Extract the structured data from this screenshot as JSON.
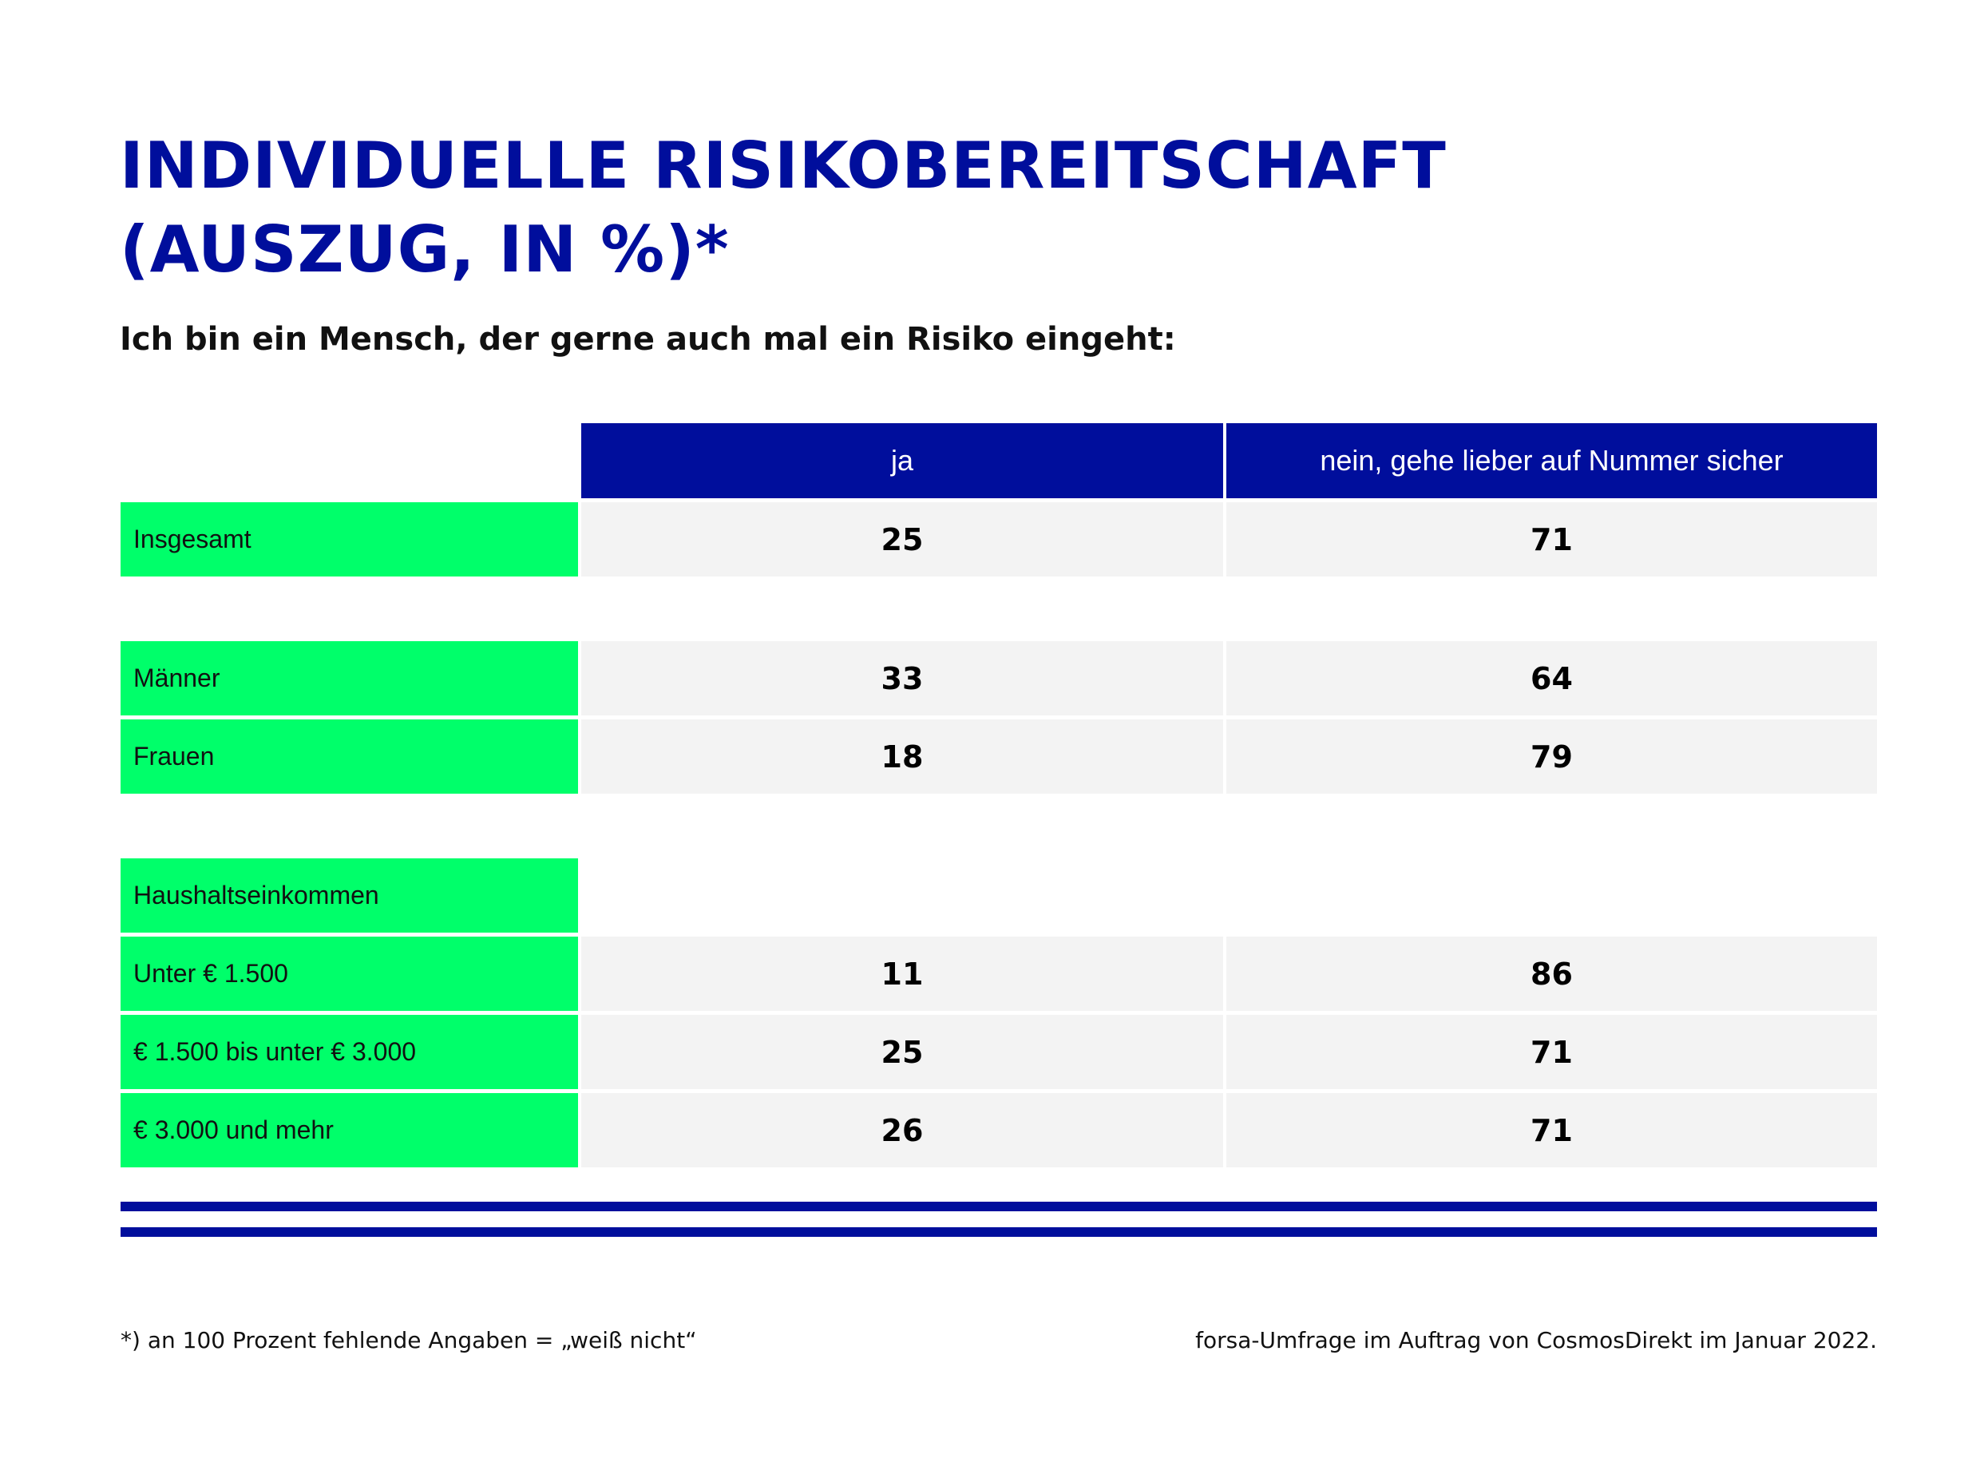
{
  "title_lines": [
    "INDIVIDUELLE RISIKOBEREITSCHAFT",
    "(AUSZUG, IN %)*"
  ],
  "subtitle": "Ich bin ein Mensch, der gerne auch mal ein Risiko eingeht:",
  "columns": [
    "ja",
    "nein, gehe lieber auf Nummer sicher"
  ],
  "rows": [
    {
      "label": "Insgesamt",
      "values": [
        25,
        71
      ]
    },
    {
      "label": "Männer",
      "values": [
        33,
        64
      ]
    },
    {
      "label": "Frauen",
      "values": [
        18,
        79
      ]
    },
    {
      "label": "Haushaltseinkommen",
      "values": []
    },
    {
      "label": "Unter € 1.500",
      "values": [
        11,
        86
      ]
    },
    {
      "label": "€ 1.500 bis unter € 3.000",
      "values": [
        25,
        71
      ]
    },
    {
      "label": "€ 3.000 und mehr",
      "values": [
        26,
        71
      ]
    }
  ],
  "footnote": "*) an 100 Prozent fehlende Angaben = „weiß nicht“",
  "source": "forsa-Umfrage im Auftrag von CosmosDirekt im Januar 2022.",
  "colors": {
    "navy": "#000e9c",
    "green": "#00ff6a",
    "cell": "#f3f3f3"
  },
  "chart_data": {
    "type": "table",
    "title": "INDIVIDUELLE RISIKOBEREITSCHAFT (AUSZUG, IN %)*",
    "subtitle": "Ich bin ein Mensch, der gerne auch mal ein Risiko eingeht:",
    "columns": [
      "ja",
      "nein, gehe lieber auf Nummer sicher"
    ],
    "rows": [
      {
        "label": "Insgesamt",
        "values": [
          25,
          71
        ]
      },
      {
        "label": "Männer",
        "values": [
          33,
          64
        ]
      },
      {
        "label": "Frauen",
        "values": [
          18,
          79
        ]
      },
      {
        "label": "Haushaltseinkommen",
        "values": []
      },
      {
        "label": "Unter € 1.500",
        "values": [
          11,
          86
        ]
      },
      {
        "label": "€ 1.500 bis unter € 3.000",
        "values": [
          25,
          71
        ]
      },
      {
        "label": "€ 3.000 und mehr",
        "values": [
          26,
          71
        ]
      }
    ]
  }
}
